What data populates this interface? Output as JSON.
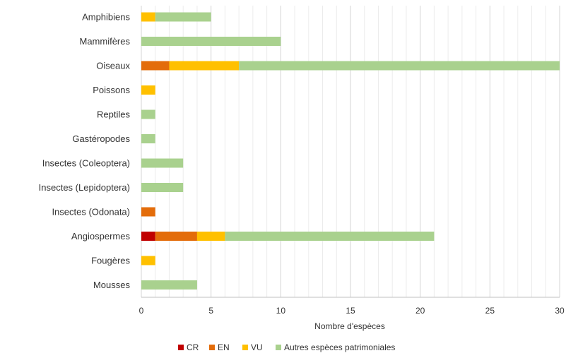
{
  "chart_data": {
    "type": "bar",
    "orientation": "horizontal",
    "stacked": true,
    "xlabel": "Nombre d'espèces",
    "xlim": [
      0,
      30
    ],
    "xticks": [
      0,
      5,
      10,
      15,
      20,
      25,
      30
    ],
    "grid": true,
    "legend_position": "bottom",
    "categories": [
      "Amphibiens",
      "Mammifères",
      "Oiseaux",
      "Poissons",
      "Reptiles",
      "Gastéropodes",
      "Insectes (Coleoptera)",
      "Insectes (Lepidoptera)",
      "Insectes (Odonata)",
      "Angiospermes",
      "Fougères",
      "Mousses"
    ],
    "series": [
      {
        "name": "CR",
        "color": "#c00000",
        "values": [
          0,
          0,
          0,
          0,
          0,
          0,
          0,
          0,
          0,
          1,
          0,
          0
        ]
      },
      {
        "name": "EN",
        "color": "#e36c0a",
        "values": [
          0,
          0,
          2,
          0,
          0,
          0,
          0,
          0,
          1,
          3,
          0,
          0
        ]
      },
      {
        "name": "VU",
        "color": "#ffc000",
        "values": [
          1,
          0,
          5,
          1,
          0,
          0,
          0,
          0,
          0,
          2,
          1,
          0
        ]
      },
      {
        "name": "Autres espèces patrimoniales",
        "color": "#a9d18e",
        "values": [
          4,
          10,
          23,
          0,
          1,
          1,
          3,
          3,
          0,
          15,
          0,
          4
        ]
      }
    ]
  }
}
